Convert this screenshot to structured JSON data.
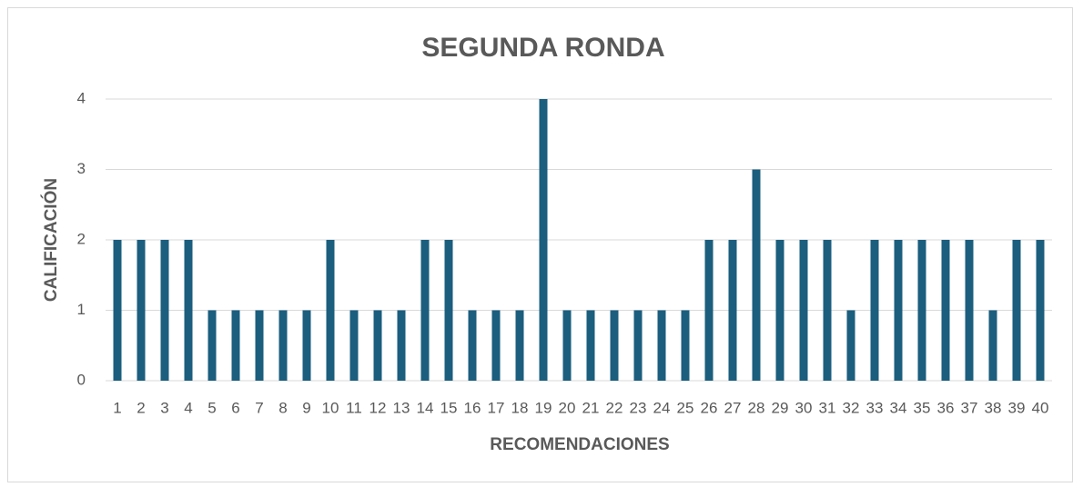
{
  "chart_data": {
    "type": "bar",
    "title": "SEGUNDA RONDA",
    "x_label": "RECOMENDACIONES",
    "y_label": "CALIFICACIÓN",
    "categories": [
      "1",
      "2",
      "3",
      "4",
      "5",
      "6",
      "7",
      "8",
      "9",
      "10",
      "11",
      "12",
      "13",
      "14",
      "15",
      "16",
      "17",
      "18",
      "19",
      "20",
      "21",
      "22",
      "23",
      "24",
      "25",
      "26",
      "27",
      "28",
      "29",
      "30",
      "31",
      "32",
      "33",
      "34",
      "35",
      "36",
      "37",
      "38",
      "39",
      "40"
    ],
    "values": [
      2,
      2,
      2,
      2,
      1,
      1,
      1,
      1,
      1,
      2,
      1,
      1,
      1,
      2,
      2,
      1,
      1,
      1,
      4,
      1,
      1,
      1,
      1,
      1,
      1,
      2,
      2,
      3,
      2,
      2,
      2,
      1,
      2,
      2,
      2,
      2,
      2,
      1,
      2,
      2
    ],
    "color": "#1b5e7e",
    "ylim": [
      0,
      4
    ],
    "yticks": [
      0,
      1,
      2,
      3,
      4
    ],
    "grid": true
  }
}
